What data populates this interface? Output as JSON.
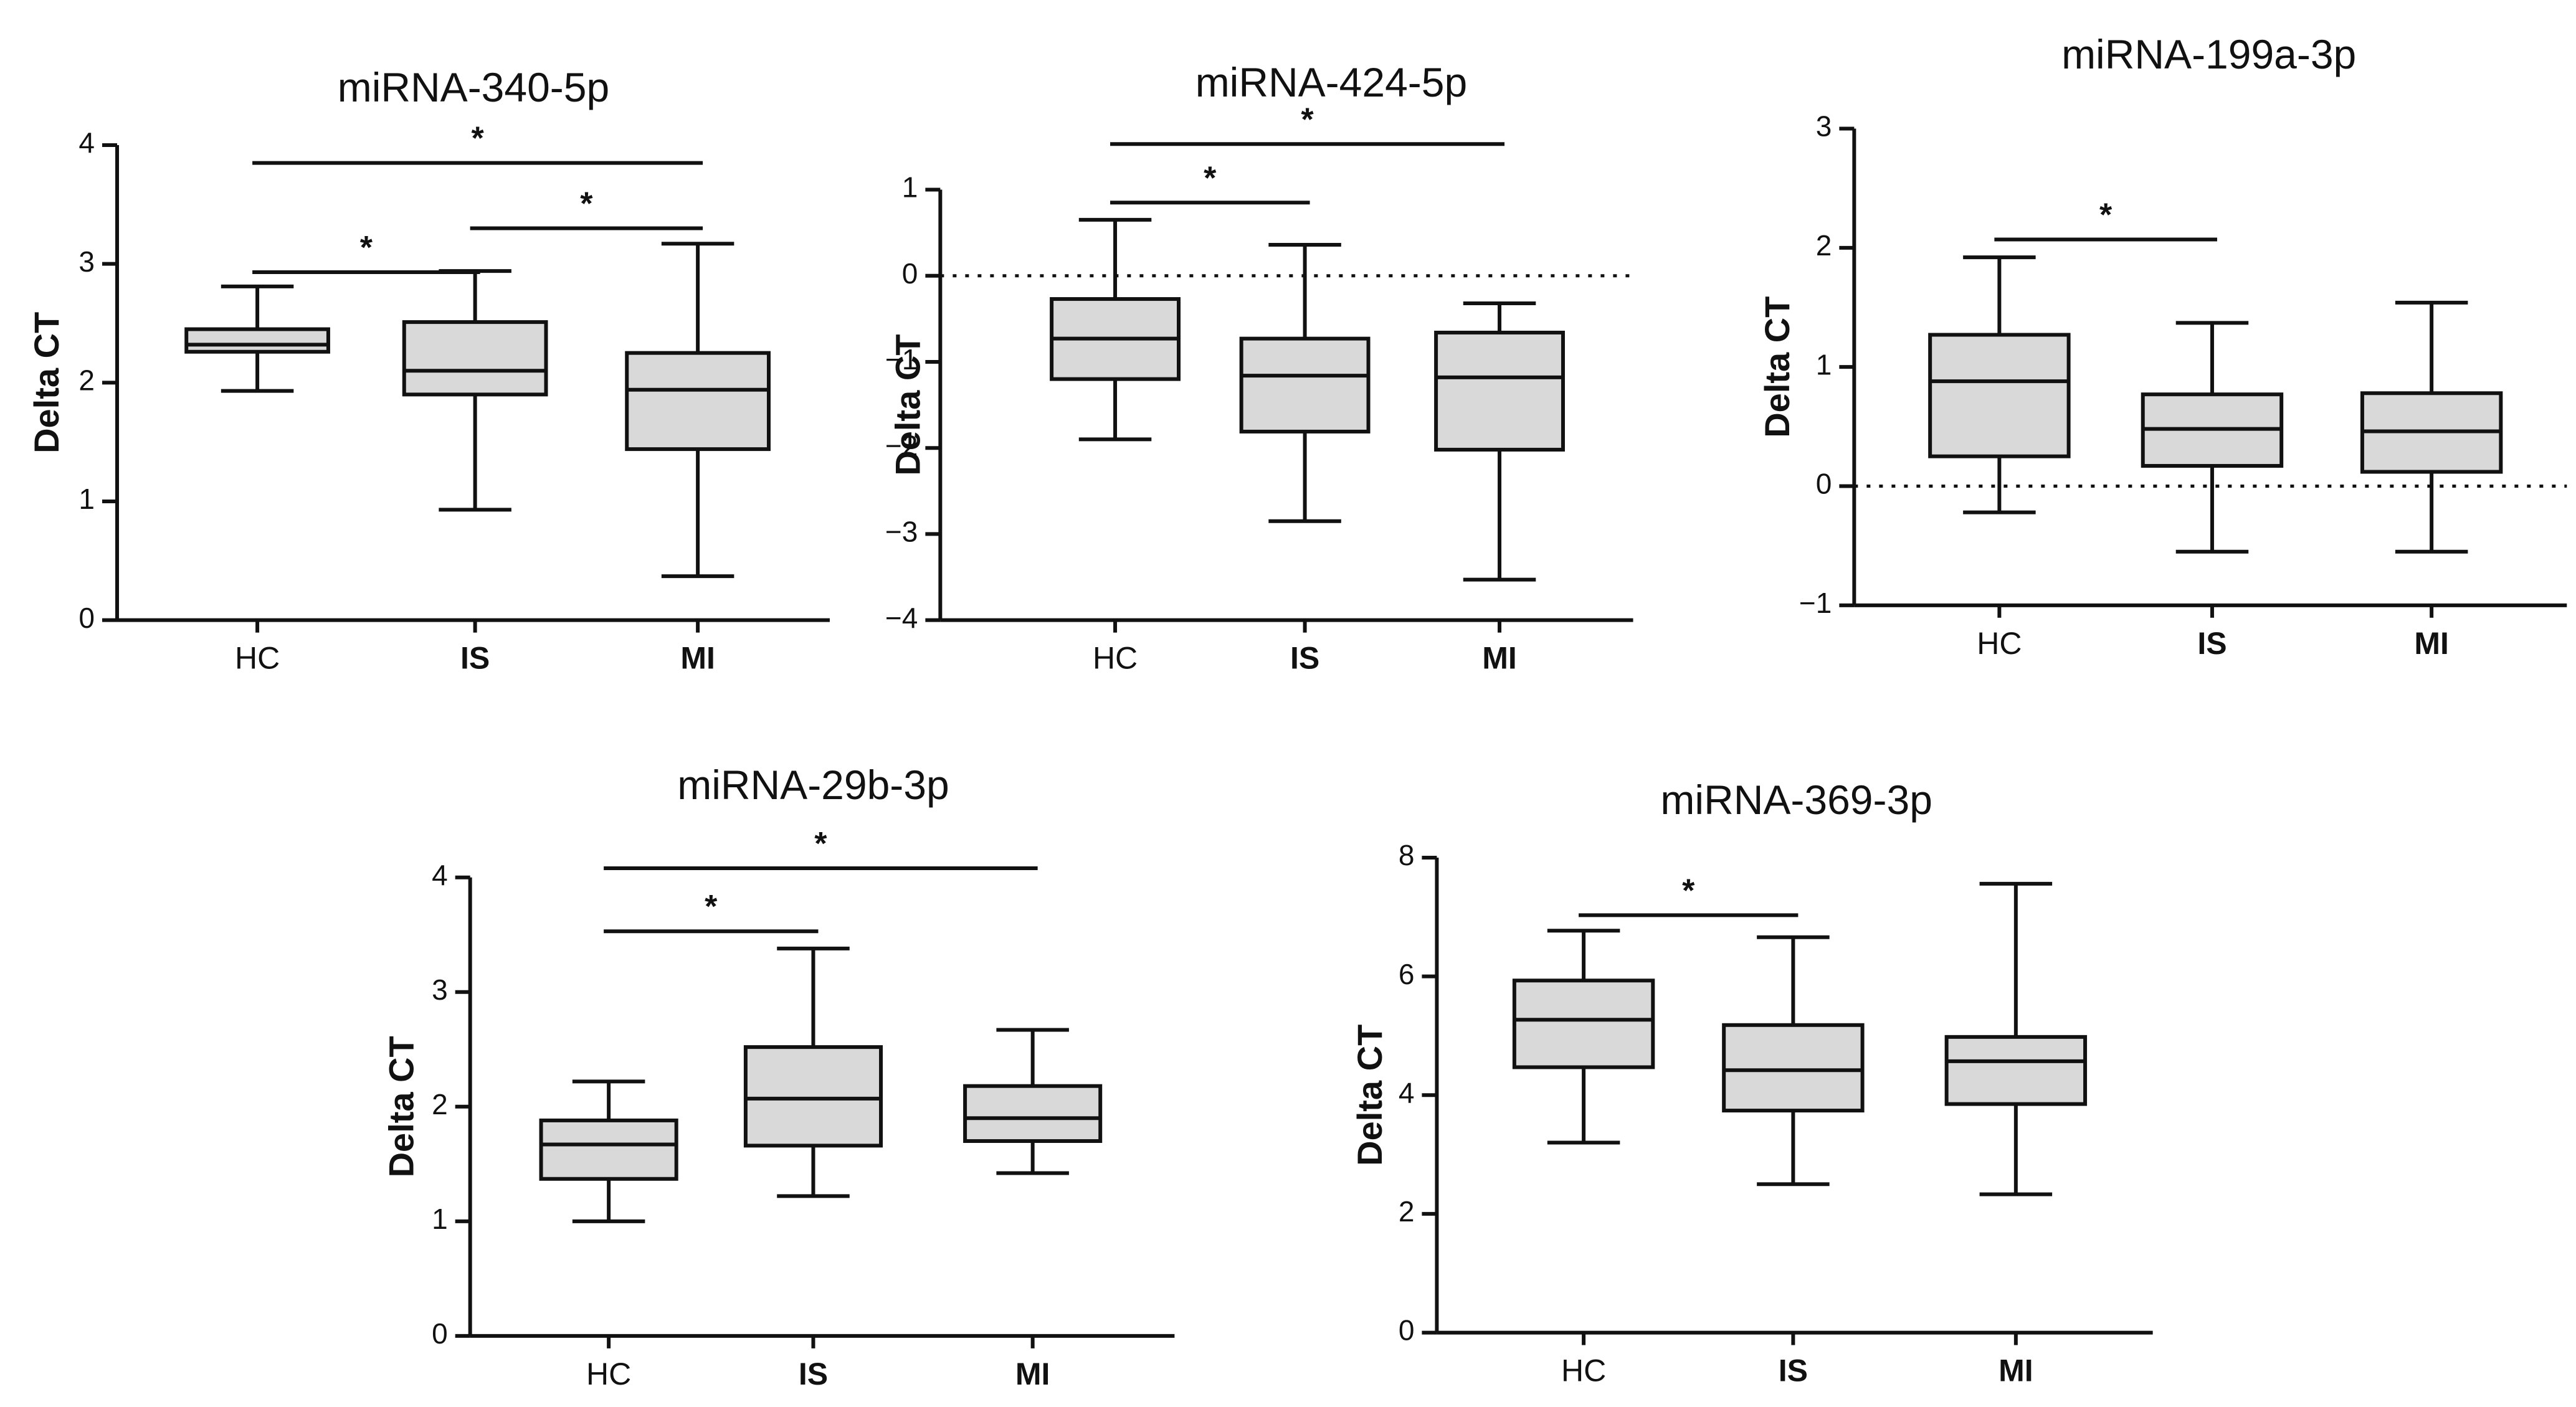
{
  "chart_data": [
    {
      "type": "box",
      "title": "miRNA-340-5p",
      "ylabel": "Delta CT",
      "ylim": [
        0,
        4
      ],
      "yticks": [
        "0",
        "1",
        "2",
        "3",
        "4"
      ],
      "reference_line": null,
      "categories": [
        {
          "label": "HC",
          "bold": false,
          "min": 1.93,
          "q1": 2.26,
          "median": 2.32,
          "q3": 2.45,
          "max": 2.81
        },
        {
          "label": "IS",
          "bold": true,
          "min": 0.93,
          "q1": 1.9,
          "median": 2.1,
          "q3": 2.51,
          "max": 2.94
        },
        {
          "label": "MI",
          "bold": true,
          "min": 0.37,
          "q1": 1.44,
          "median": 1.94,
          "q3": 2.25,
          "max": 3.17
        }
      ],
      "significance": [
        {
          "from": "HC",
          "to": "IS",
          "label": "*",
          "y": 2.93
        },
        {
          "from": "IS",
          "to": "MI",
          "label": "*",
          "y": 3.3
        },
        {
          "from": "HC",
          "to": "MI",
          "label": "*",
          "y": 3.85
        }
      ]
    },
    {
      "type": "box",
      "title": "miRNA-424-5p",
      "ylabel": "Delta CT",
      "ylim": [
        -4,
        1
      ],
      "yticks": [
        "−4",
        "−3",
        "−2",
        "−1",
        "0",
        "1"
      ],
      "reference_line": 0,
      "categories": [
        {
          "label": "HC",
          "bold": false,
          "min": -1.9,
          "q1": -1.2,
          "median": -0.73,
          "q3": -0.27,
          "max": 0.65
        },
        {
          "label": "IS",
          "bold": true,
          "min": -2.85,
          "q1": -1.81,
          "median": -1.16,
          "q3": -0.73,
          "max": 0.36
        },
        {
          "label": "MI",
          "bold": true,
          "min": -3.53,
          "q1": -2.02,
          "median": -1.18,
          "q3": -0.66,
          "max": -0.32
        }
      ],
      "significance": [
        {
          "from": "HC",
          "to": "IS",
          "label": "*",
          "y": 0.85
        },
        {
          "from": "HC",
          "to": "MI",
          "label": "*",
          "y": 1.53
        }
      ]
    },
    {
      "type": "box",
      "title": "miRNA-199a-3p",
      "ylabel": "Delta CT",
      "ylim": [
        -1,
        3
      ],
      "yticks": [
        "−1",
        "0",
        "1",
        "2",
        "3"
      ],
      "reference_line": 0,
      "categories": [
        {
          "label": "HC",
          "bold": false,
          "min": -0.22,
          "q1": 0.25,
          "median": 0.88,
          "q3": 1.27,
          "max": 1.92
        },
        {
          "label": "IS",
          "bold": true,
          "min": -0.55,
          "q1": 0.17,
          "median": 0.48,
          "q3": 0.77,
          "max": 1.37
        },
        {
          "label": "MI",
          "bold": true,
          "min": -0.55,
          "q1": 0.12,
          "median": 0.46,
          "q3": 0.78,
          "max": 1.54
        }
      ],
      "significance": [
        {
          "from": "HC",
          "to": "IS",
          "label": "*",
          "y": 2.07
        }
      ]
    },
    {
      "type": "box",
      "title": "miRNA-29b-3p",
      "ylabel": "Delta CT",
      "ylim": [
        0,
        4
      ],
      "yticks": [
        "0",
        "1",
        "2",
        "3",
        "4"
      ],
      "reference_line": null,
      "categories": [
        {
          "label": "HC",
          "bold": false,
          "min": 1.0,
          "q1": 1.37,
          "median": 1.67,
          "q3": 1.88,
          "max": 2.22
        },
        {
          "label": "IS",
          "bold": true,
          "min": 1.22,
          "q1": 1.66,
          "median": 2.07,
          "q3": 2.52,
          "max": 3.38
        },
        {
          "label": "MI",
          "bold": true,
          "min": 1.42,
          "q1": 1.7,
          "median": 1.9,
          "q3": 2.18,
          "max": 2.67
        }
      ],
      "significance": [
        {
          "from": "HC",
          "to": "IS",
          "label": "*",
          "y": 3.53
        },
        {
          "from": "HC",
          "to": "MI",
          "label": "*",
          "y": 4.08
        }
      ]
    },
    {
      "type": "box",
      "title": "miRNA-369-3p",
      "ylabel": "Delta CT",
      "ylim": [
        0,
        8
      ],
      "yticks": [
        "0",
        "2",
        "4",
        "6",
        "8"
      ],
      "reference_line": null,
      "categories": [
        {
          "label": "HC",
          "bold": false,
          "min": 3.2,
          "q1": 4.47,
          "median": 5.27,
          "q3": 5.93,
          "max": 6.77
        },
        {
          "label": "IS",
          "bold": true,
          "min": 2.5,
          "q1": 3.74,
          "median": 4.42,
          "q3": 5.18,
          "max": 6.66
        },
        {
          "label": "MI",
          "bold": true,
          "min": 2.33,
          "q1": 3.85,
          "median": 4.57,
          "q3": 4.98,
          "max": 7.56
        }
      ],
      "significance": [
        {
          "from": "HC",
          "to": "IS",
          "label": "*",
          "y": 7.03
        }
      ]
    }
  ]
}
